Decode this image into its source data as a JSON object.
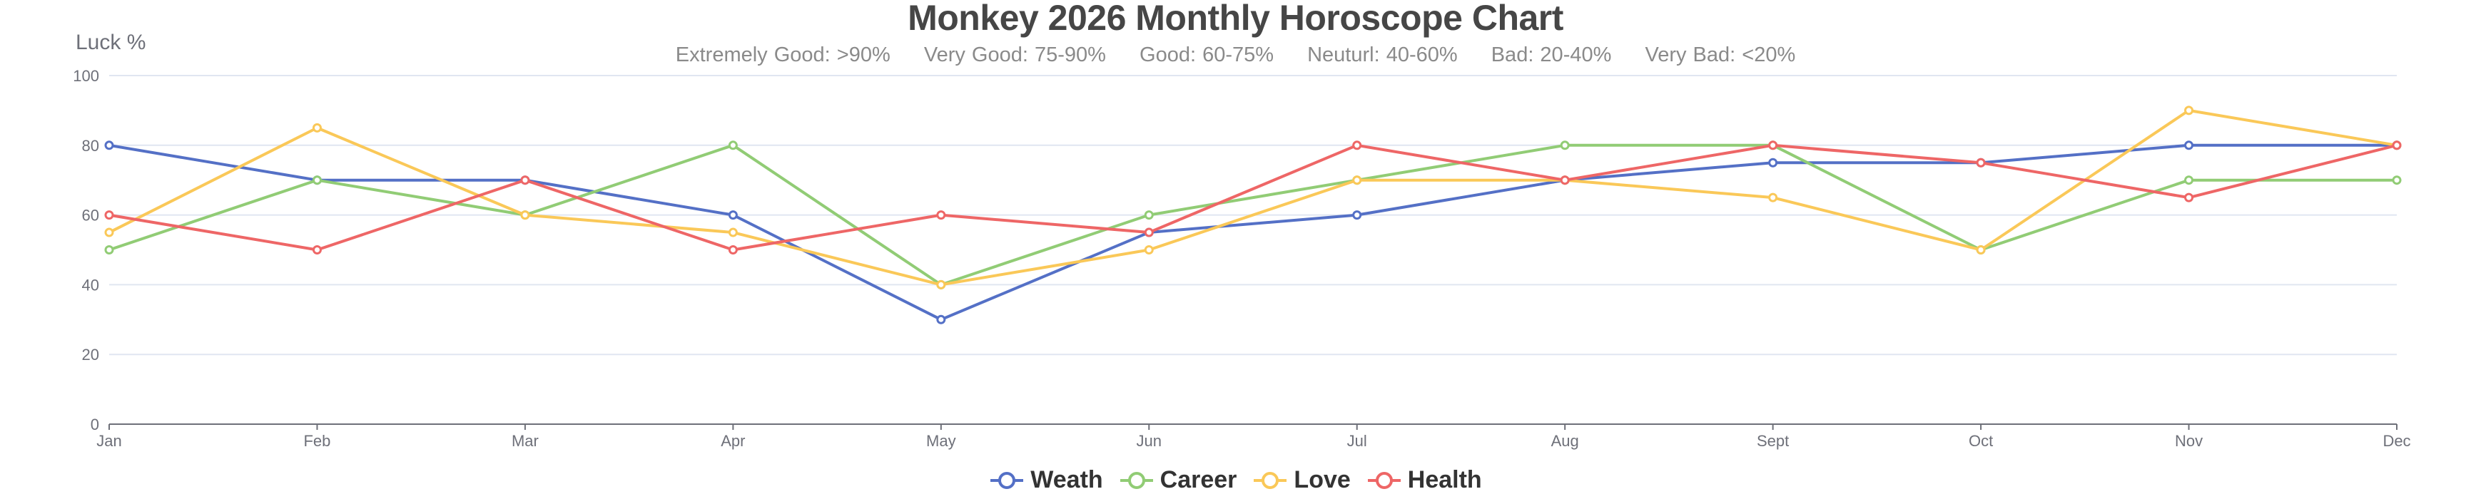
{
  "chart_data": {
    "type": "line",
    "title": "Monkey 2026 Monthly Horoscope Chart",
    "subtitle": [
      "Extremely Good: >90%",
      "Very Good: 75-90%",
      "Good: 60-75%",
      "Neuturl: 40-60%",
      "Bad: 20-40%",
      "Very Bad: <20%"
    ],
    "xlabel": "",
    "ylabel": "Luck %",
    "ylim": [
      0,
      100
    ],
    "yticks": [
      0,
      20,
      40,
      60,
      80,
      100
    ],
    "grid": true,
    "legend_position": "bottom",
    "categories": [
      "Jan",
      "Feb",
      "Mar",
      "Apr",
      "May",
      "Jun",
      "Jul",
      "Aug",
      "Sept",
      "Oct",
      "Nov",
      "Dec"
    ],
    "series": [
      {
        "name": "Weath",
        "color": "#5470c6",
        "values": [
          80,
          70,
          70,
          60,
          30,
          55,
          60,
          70,
          75,
          75,
          80,
          80
        ]
      },
      {
        "name": "Career",
        "color": "#91cc75",
        "values": [
          50,
          70,
          60,
          80,
          40,
          60,
          70,
          80,
          80,
          50,
          70,
          70
        ]
      },
      {
        "name": "Love",
        "color": "#fac858",
        "values": [
          55,
          85,
          60,
          55,
          40,
          50,
          70,
          70,
          65,
          50,
          90,
          80
        ]
      },
      {
        "name": "Health",
        "color": "#ee6666",
        "values": [
          60,
          50,
          70,
          50,
          60,
          55,
          80,
          70,
          80,
          75,
          65,
          80
        ]
      }
    ]
  },
  "header": {
    "title": "Monkey 2026 Monthly Horoscope Chart",
    "subtitle_items": [
      "Extremely Good: >90%",
      "Very Good: 75-90%",
      "Good: 60-75%",
      "Neuturl: 40-60%",
      "Bad: 20-40%",
      "Very Bad: <20%"
    ]
  },
  "axis": {
    "y_title": "Luck %"
  },
  "legend": {
    "items": [
      {
        "label": "Weath",
        "color": "#5470c6"
      },
      {
        "label": "Career",
        "color": "#91cc75"
      },
      {
        "label": "Love",
        "color": "#fac858"
      },
      {
        "label": "Health",
        "color": "#ee6666"
      }
    ]
  }
}
